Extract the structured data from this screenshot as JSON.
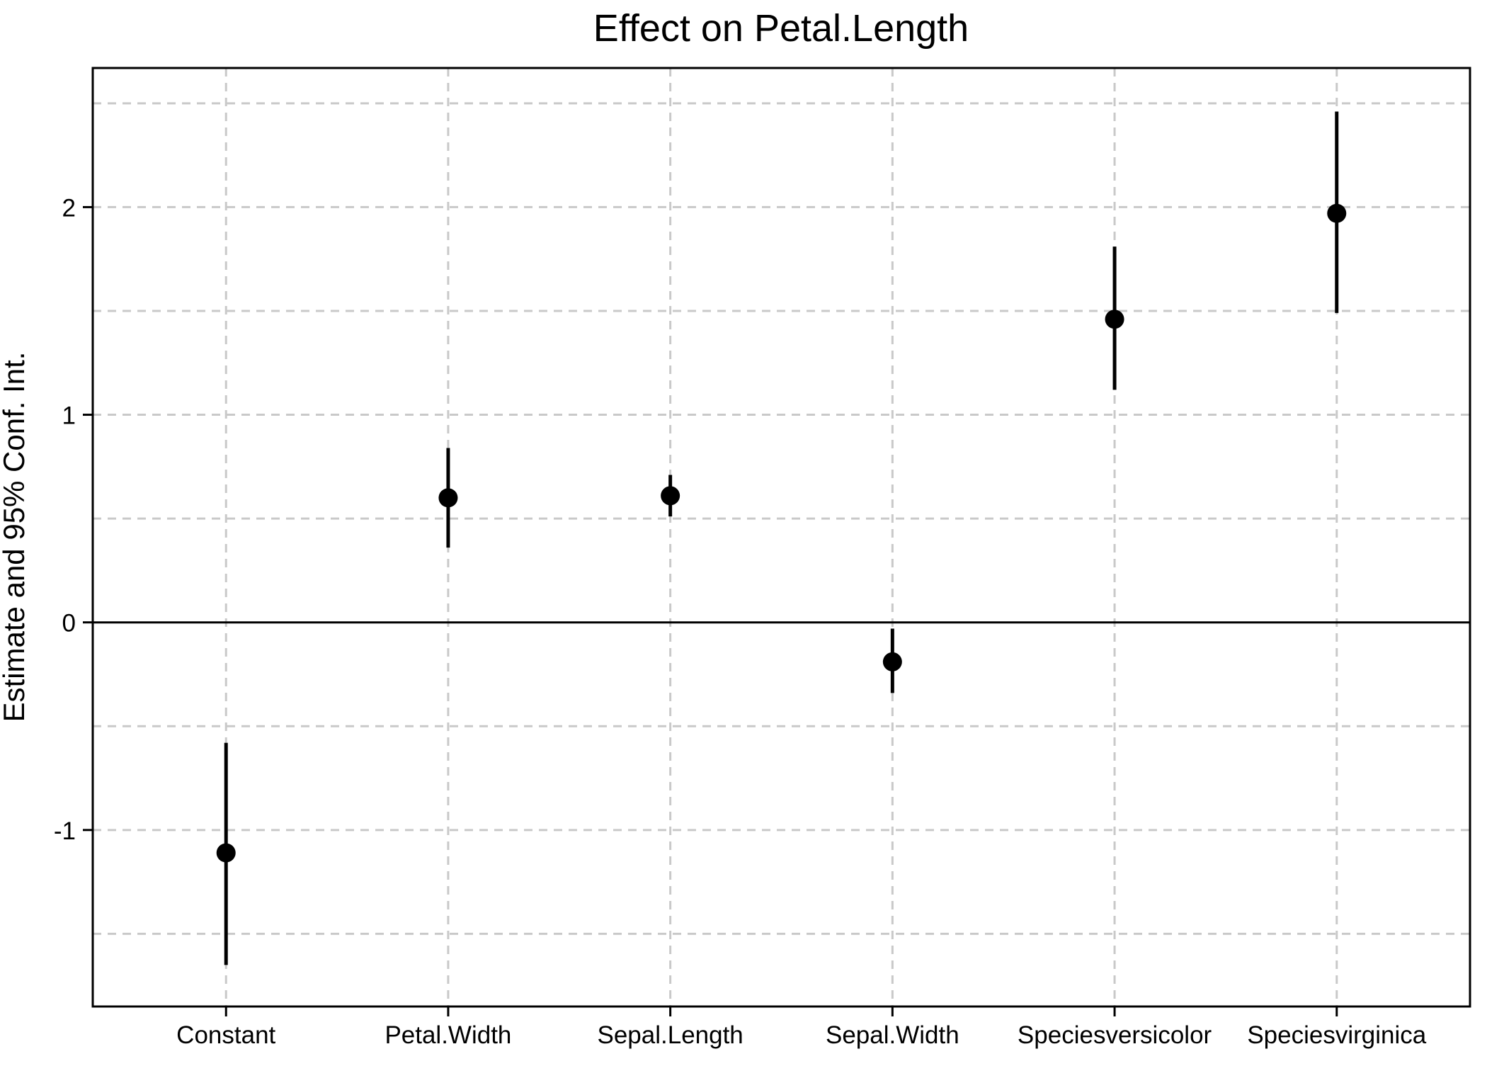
{
  "chart_data": {
    "type": "scatter",
    "subtype": "coefficient-plot-with-error-bars",
    "title": "Effect on Petal.Length",
    "xlabel": "",
    "ylabel": "Estimate and 95% Conf. Int.",
    "categories": [
      "Constant",
      "Petal.Width",
      "Sepal.Length",
      "Sepal.Width",
      "Speciesversicolor",
      "Speciesvirginica"
    ],
    "series": [
      {
        "name": "Estimate",
        "values": [
          -1.11,
          0.6,
          0.61,
          -0.19,
          1.46,
          1.97
        ],
        "ci_low": [
          -1.65,
          0.36,
          0.51,
          -0.34,
          1.12,
          1.49
        ],
        "ci_high": [
          -0.58,
          0.84,
          0.71,
          -0.03,
          1.81,
          2.46
        ]
      }
    ],
    "y_ticks": [
      -1,
      0,
      1,
      2
    ],
    "y_tick_labels": [
      "-1",
      "0",
      "1",
      "2"
    ],
    "gridline_values": [
      -1.5,
      -1,
      -0.5,
      0.5,
      1,
      1.5,
      2,
      2.5
    ],
    "ylim": [
      -1.85,
      2.67
    ],
    "zero_reference_line": 0,
    "grid": "dashed, light gray, every 0.5; vertical dashed gridline at each category",
    "legend": "none",
    "colors": {
      "point": "#000000",
      "error_bar": "#000000",
      "grid": "#c9c9c9",
      "zero_line": "#000000",
      "panel_border": "#000000",
      "background": "#ffffff",
      "text": "#000000"
    }
  }
}
